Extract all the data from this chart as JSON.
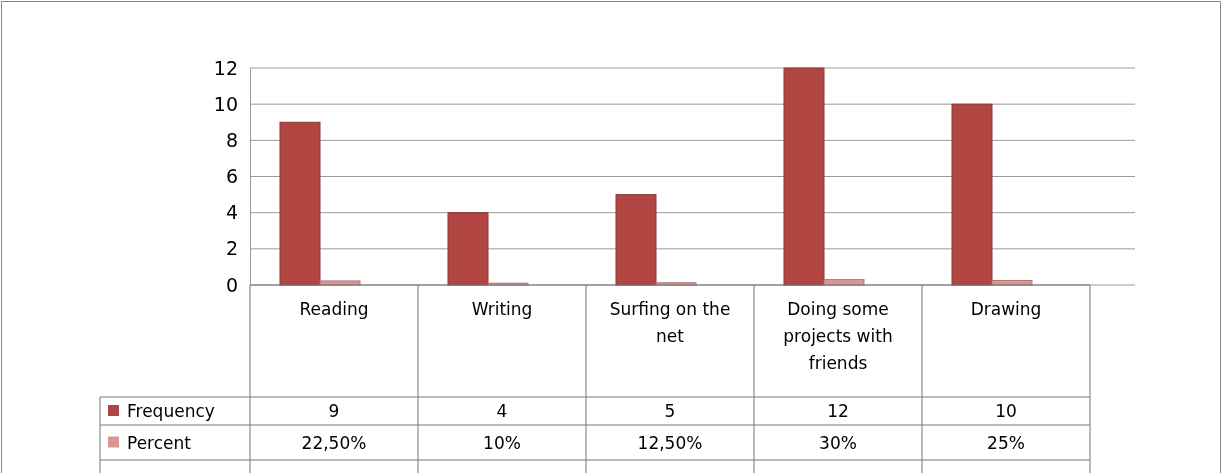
{
  "chart_data": {
    "type": "bar",
    "categories": [
      "Reading",
      "Writing",
      "Surfing on the net",
      "Doing some projects with friends",
      "Drawing"
    ],
    "series": [
      {
        "name": "Frequency",
        "color": "#b04542",
        "values": [
          9,
          4,
          5,
          12,
          10
        ],
        "value_labels": [
          "9",
          "4",
          "5",
          "12",
          "10"
        ]
      },
      {
        "name": "Percent",
        "color": "#d99694",
        "values": [
          0.225,
          0.1,
          0.125,
          0.3,
          0.25
        ],
        "value_labels": [
          "22,50%",
          "10%",
          "12,50%",
          "30%",
          "25%"
        ]
      }
    ],
    "ylim": [
      0,
      12
    ],
    "yticks": [
      0,
      2,
      4,
      6,
      8,
      10,
      12
    ],
    "grid": "y",
    "legend": "bottom"
  }
}
